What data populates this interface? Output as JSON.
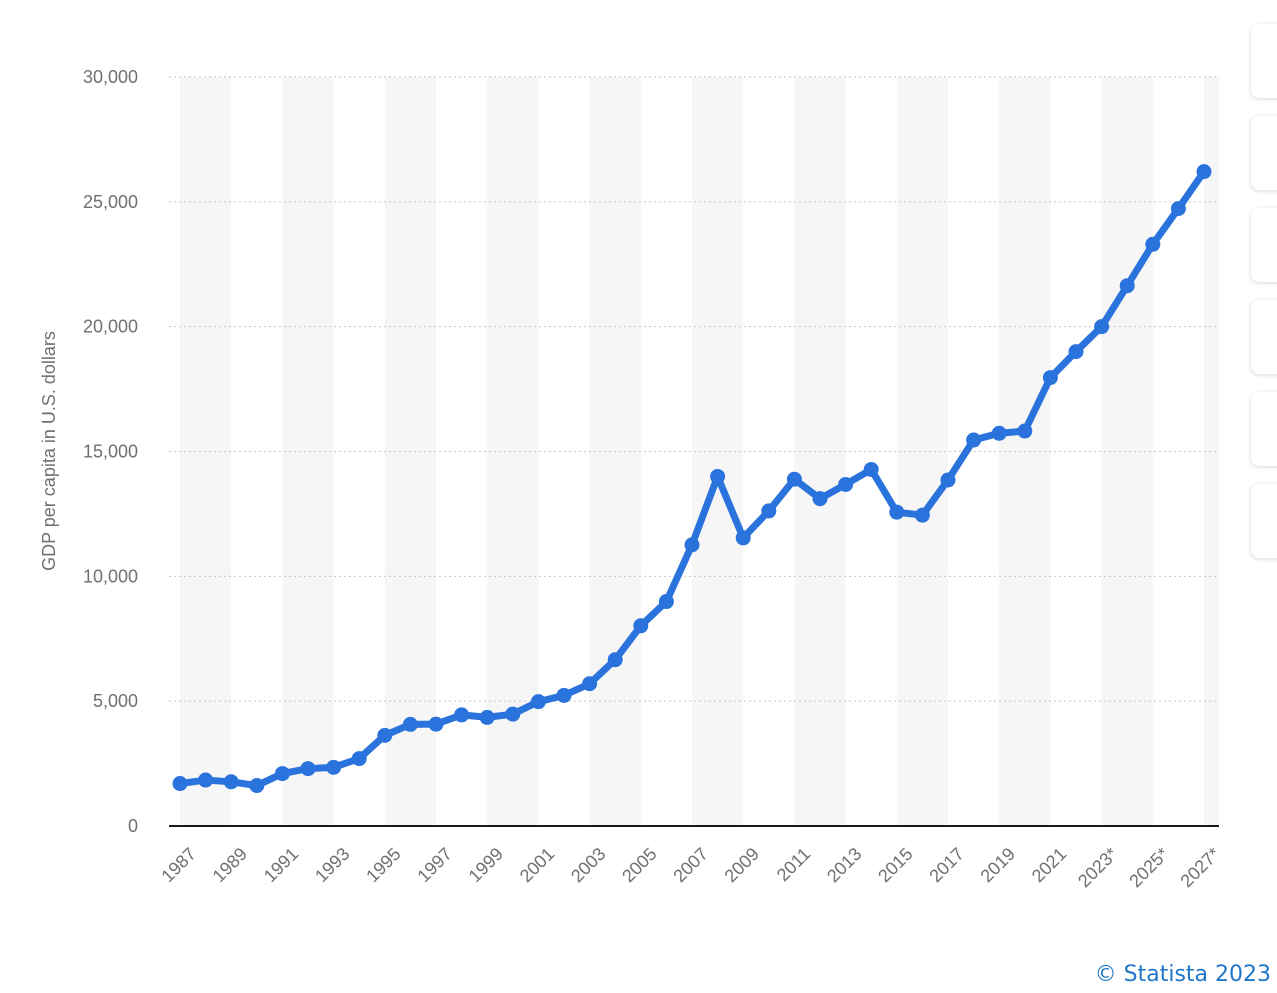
{
  "chart_data": {
    "type": "line",
    "title": "",
    "xlabel": "",
    "ylabel": "GDP per capita in U.S. dollars",
    "ylim": [
      0,
      30000
    ],
    "y_ticks": [
      0,
      5000,
      10000,
      15000,
      20000,
      25000,
      30000
    ],
    "y_tick_labels": [
      "0",
      "5,000",
      "10,000",
      "15,000",
      "20,000",
      "25,000",
      "30,000"
    ],
    "x_tick_labels": [
      "1987",
      "1989",
      "1991",
      "1993",
      "1995",
      "1997",
      "1999",
      "2001",
      "2003",
      "2005",
      "2007",
      "2009",
      "2011",
      "2013",
      "2015",
      "2017",
      "2019",
      "2021",
      "2023*",
      "2025*",
      "2027*"
    ],
    "x": [
      "1987",
      "1988",
      "1989",
      "1990",
      "1991",
      "1992",
      "1993",
      "1994",
      "1995",
      "1996",
      "1997",
      "1998",
      "1999",
      "2000",
      "2001",
      "2002",
      "2003",
      "2004",
      "2005",
      "2006",
      "2007",
      "2008",
      "2009",
      "2010",
      "2011",
      "2012",
      "2013",
      "2014",
      "2015",
      "2016",
      "2017",
      "2018",
      "2019",
      "2020",
      "2021",
      "2022*",
      "2023*",
      "2024*",
      "2025*",
      "2026*",
      "2027*"
    ],
    "series": [
      {
        "color": "#2a73dd",
        "values": [
          1700,
          1840,
          1770,
          1620,
          2100,
          2300,
          2350,
          2700,
          3630,
          4070,
          4080,
          4450,
          4350,
          4480,
          4980,
          5230,
          5700,
          6660,
          8020,
          8990,
          11260,
          14000,
          11540,
          12620,
          13890,
          13110,
          13680,
          14280,
          12570,
          12450,
          13860,
          15460,
          15730,
          15820,
          17960,
          19000,
          20000,
          21640,
          23300,
          24730,
          26210
        ]
      }
    ],
    "grid": true,
    "legend": "none"
  },
  "colors": {
    "line": "#2a73dd",
    "axis_text": "#707070",
    "grid": "#c6c6c6",
    "band": "#f6f6f6"
  },
  "side_buttons": [
    {
      "icon": "button"
    },
    {
      "icon": "button"
    },
    {
      "icon": "button"
    },
    {
      "icon": "button"
    },
    {
      "icon": "button"
    },
    {
      "icon": "button"
    }
  ],
  "credit": "© Statista 2023"
}
